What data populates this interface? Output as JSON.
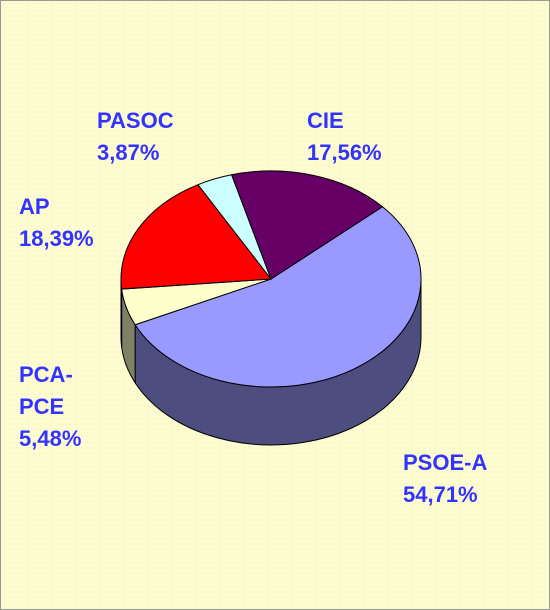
{
  "chart_data": {
    "type": "pie3d",
    "categories": [
      "PSOE-A",
      "PCA-PCE",
      "AP",
      "PASOC",
      "CIE"
    ],
    "values": [
      54.71,
      5.48,
      18.39,
      3.87,
      17.56
    ],
    "value_labels": [
      "54,71%",
      "5,48%",
      "18,39%",
      "3,87%",
      "17,56%"
    ],
    "colors": [
      "#9999ff",
      "#ffffcc",
      "#ff0000",
      "#ccffff",
      "#660066"
    ]
  }
}
